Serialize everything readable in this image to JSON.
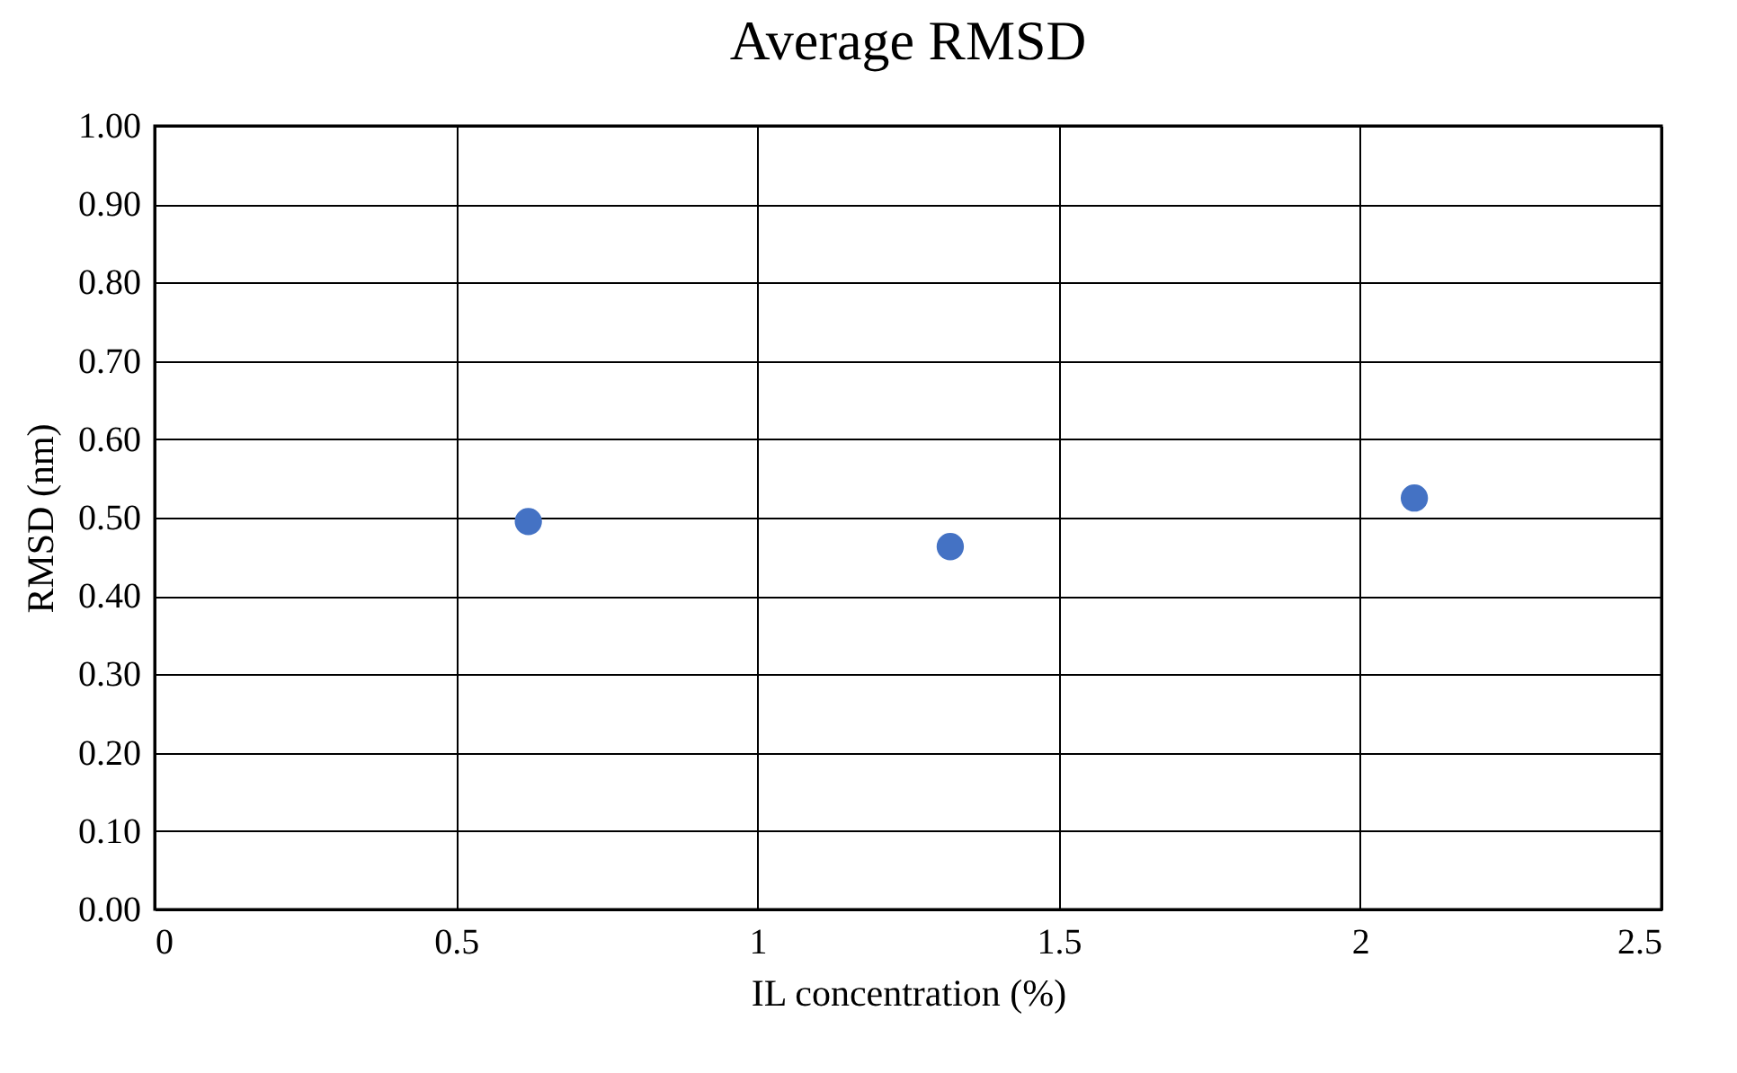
{
  "chart_data": {
    "type": "scatter",
    "title": "Average RMSD",
    "xlabel": "IL concentration (%)",
    "ylabel": "RMSD (nm)",
    "x": [
      0.62,
      1.32,
      2.09
    ],
    "series": [
      {
        "color": "#4472c4",
        "values": [
          0.495,
          0.463,
          0.525
        ]
      }
    ],
    "xlim": [
      0,
      2.5
    ],
    "xticks": [
      0,
      0.5,
      1,
      1.5,
      2,
      2.5
    ],
    "ylim": [
      0,
      1
    ],
    "yticks": [
      {
        "value": 0,
        "label": "0.00"
      },
      {
        "value": 0.1,
        "label": "0.10"
      },
      {
        "value": 0.2,
        "label": "0.20"
      },
      {
        "value": 0.3,
        "label": "0.30"
      },
      {
        "value": 0.4,
        "label": "0.40"
      },
      {
        "value": 0.5,
        "label": "0.50"
      },
      {
        "value": 0.6,
        "label": "0.60"
      },
      {
        "value": 0.7,
        "label": "0.70"
      },
      {
        "value": 0.8,
        "label": "0.80"
      },
      {
        "value": 0.9,
        "label": "0.90"
      },
      {
        "value": 1,
        "label": "1.00"
      }
    ],
    "grid": true,
    "marker": "circle",
    "legend": false
  }
}
